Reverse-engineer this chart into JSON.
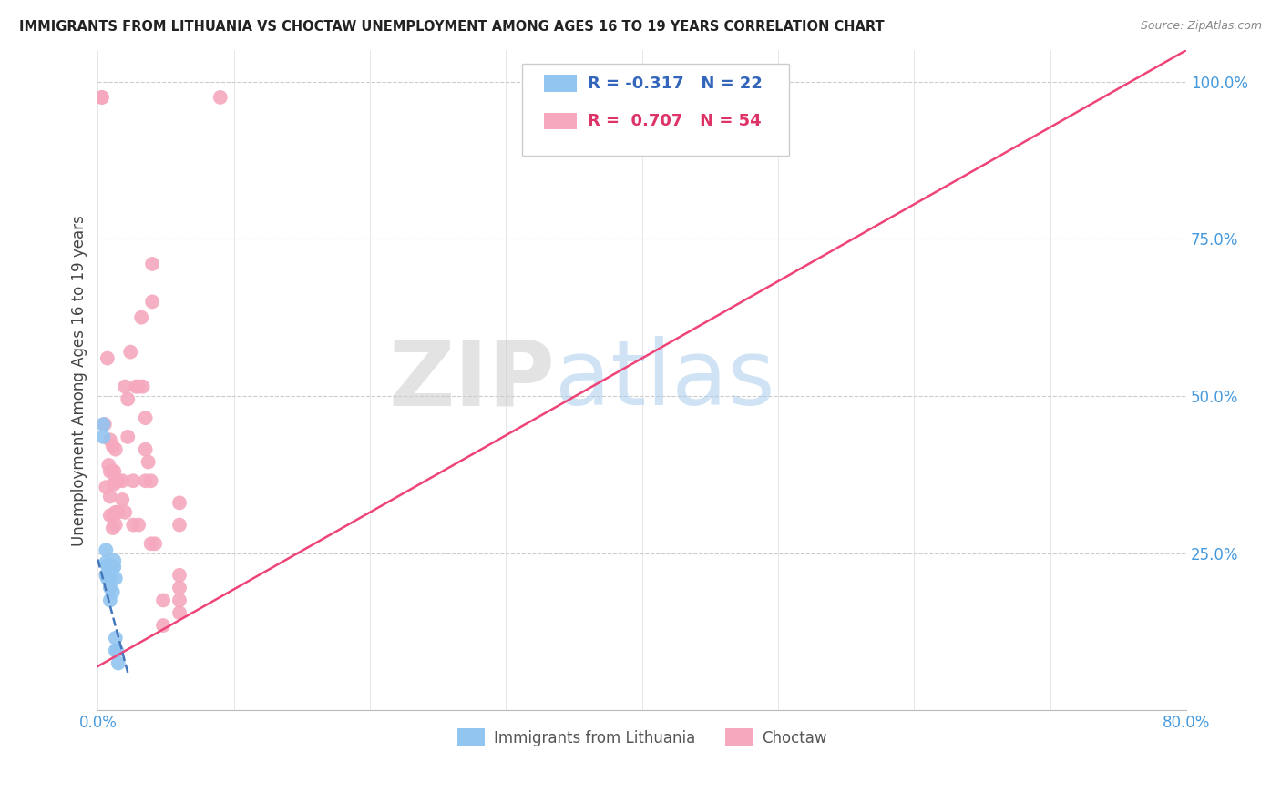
{
  "title": "IMMIGRANTS FROM LITHUANIA VS CHOCTAW UNEMPLOYMENT AMONG AGES 16 TO 19 YEARS CORRELATION CHART",
  "source": "Source: ZipAtlas.com",
  "ylabel": "Unemployment Among Ages 16 to 19 years",
  "xlim": [
    0,
    0.8
  ],
  "ylim": [
    0,
    1.05
  ],
  "xticks": [
    0.0,
    0.1,
    0.2,
    0.3,
    0.4,
    0.5,
    0.6,
    0.7,
    0.8
  ],
  "xticklabels": [
    "0.0%",
    "",
    "",
    "",
    "",
    "",
    "",
    "",
    "80.0%"
  ],
  "yticks": [
    0.0,
    0.25,
    0.5,
    0.75,
    1.0
  ],
  "yticklabels": [
    "",
    "25.0%",
    "50.0%",
    "75.0%",
    "100.0%"
  ],
  "r_blue": -0.317,
  "n_blue": 22,
  "r_pink": 0.707,
  "n_pink": 54,
  "blue_color": "#92C5F0",
  "pink_color": "#F5A8BE",
  "blue_line_color": "#4477BB",
  "pink_line_color": "#EE4477",
  "watermark_zip": "ZIP",
  "watermark_atlas": "atlas",
  "blue_dots": [
    [
      0.004,
      0.455
    ],
    [
      0.004,
      0.435
    ],
    [
      0.006,
      0.255
    ],
    [
      0.006,
      0.235
    ],
    [
      0.006,
      0.215
    ],
    [
      0.007,
      0.23
    ],
    [
      0.007,
      0.21
    ],
    [
      0.008,
      0.23
    ],
    [
      0.008,
      0.21
    ],
    [
      0.009,
      0.23
    ],
    [
      0.009,
      0.21
    ],
    [
      0.009,
      0.195
    ],
    [
      0.009,
      0.175
    ],
    [
      0.011,
      0.228
    ],
    [
      0.011,
      0.188
    ],
    [
      0.012,
      0.238
    ],
    [
      0.012,
      0.228
    ],
    [
      0.013,
      0.21
    ],
    [
      0.013,
      0.115
    ],
    [
      0.013,
      0.095
    ],
    [
      0.014,
      0.095
    ],
    [
      0.015,
      0.075
    ]
  ],
  "pink_dots": [
    [
      0.003,
      0.975
    ],
    [
      0.003,
      0.975
    ],
    [
      0.005,
      0.455
    ],
    [
      0.006,
      0.355
    ],
    [
      0.007,
      0.56
    ],
    [
      0.008,
      0.39
    ],
    [
      0.009,
      0.43
    ],
    [
      0.009,
      0.38
    ],
    [
      0.009,
      0.34
    ],
    [
      0.009,
      0.31
    ],
    [
      0.011,
      0.42
    ],
    [
      0.011,
      0.38
    ],
    [
      0.011,
      0.31
    ],
    [
      0.011,
      0.29
    ],
    [
      0.012,
      0.38
    ],
    [
      0.012,
      0.36
    ],
    [
      0.013,
      0.415
    ],
    [
      0.013,
      0.365
    ],
    [
      0.013,
      0.315
    ],
    [
      0.013,
      0.295
    ],
    [
      0.015,
      0.365
    ],
    [
      0.015,
      0.315
    ],
    [
      0.018,
      0.365
    ],
    [
      0.018,
      0.335
    ],
    [
      0.02,
      0.515
    ],
    [
      0.02,
      0.315
    ],
    [
      0.022,
      0.495
    ],
    [
      0.022,
      0.435
    ],
    [
      0.024,
      0.57
    ],
    [
      0.026,
      0.295
    ],
    [
      0.026,
      0.365
    ],
    [
      0.028,
      0.515
    ],
    [
      0.03,
      0.295
    ],
    [
      0.03,
      0.515
    ],
    [
      0.032,
      0.625
    ],
    [
      0.033,
      0.515
    ],
    [
      0.035,
      0.465
    ],
    [
      0.035,
      0.415
    ],
    [
      0.035,
      0.365
    ],
    [
      0.037,
      0.395
    ],
    [
      0.039,
      0.365
    ],
    [
      0.039,
      0.265
    ],
    [
      0.04,
      0.71
    ],
    [
      0.04,
      0.65
    ],
    [
      0.042,
      0.265
    ],
    [
      0.048,
      0.175
    ],
    [
      0.048,
      0.135
    ],
    [
      0.06,
      0.33
    ],
    [
      0.06,
      0.295
    ],
    [
      0.06,
      0.215
    ],
    [
      0.06,
      0.195
    ],
    [
      0.06,
      0.175
    ],
    [
      0.06,
      0.155
    ],
    [
      0.09,
      0.975
    ]
  ],
  "pink_line_x": [
    0.0,
    0.8
  ],
  "pink_line_y": [
    0.07,
    1.05
  ],
  "blue_line_x": [
    0.0,
    0.022
  ],
  "blue_line_y": [
    0.24,
    0.06
  ]
}
